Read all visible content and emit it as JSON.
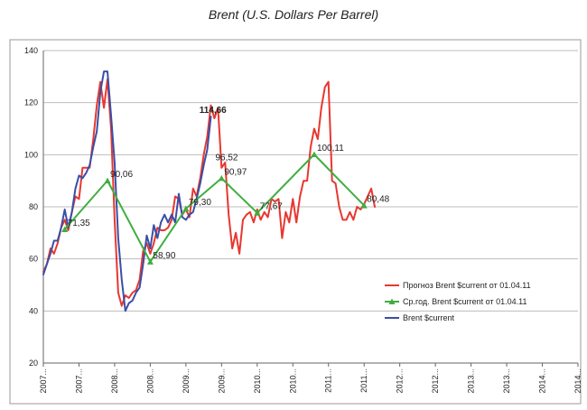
{
  "chart_data": {
    "type": "line",
    "title": "Brent (U.S. Dollars Per Barrel)",
    "xlabel": "",
    "ylabel": "",
    "ylim": [
      20,
      140
    ],
    "yticks": [
      20,
      40,
      60,
      80,
      100,
      120,
      140
    ],
    "xticks": [
      "2007",
      "2007",
      "2008",
      "2008",
      "2009",
      "2009",
      "2010",
      "2010",
      "2011",
      "2011",
      "2012",
      "2012",
      "2013",
      "2013",
      "2014",
      "2014"
    ],
    "grid": true,
    "legend_position": "bottom-right",
    "series": [
      {
        "name": "Прогноз Brent $current  от 01.04.11",
        "color": "#e8372f",
        "marker": "none",
        "points": [
          [
            0,
            55
          ],
          [
            0.1,
            58
          ],
          [
            0.2,
            64
          ],
          [
            0.3,
            62
          ],
          [
            0.4,
            66
          ],
          [
            0.5,
            72
          ],
          [
            0.6,
            75
          ],
          [
            0.7,
            71
          ],
          [
            0.8,
            78
          ],
          [
            0.9,
            84
          ],
          [
            1.0,
            83
          ],
          [
            1.1,
            95
          ],
          [
            1.2,
            95
          ],
          [
            1.3,
            95
          ],
          [
            1.4,
            106
          ],
          [
            1.5,
            119
          ],
          [
            1.6,
            128
          ],
          [
            1.7,
            118
          ],
          [
            1.8,
            129
          ],
          [
            1.9,
            110
          ],
          [
            2.0,
            75
          ],
          [
            2.1,
            47
          ],
          [
            2.2,
            42
          ],
          [
            2.3,
            46
          ],
          [
            2.4,
            45
          ],
          [
            2.5,
            47
          ],
          [
            2.6,
            48
          ],
          [
            2.7,
            52
          ],
          [
            2.8,
            63
          ],
          [
            2.9,
            66
          ],
          [
            3.0,
            62
          ],
          [
            3.1,
            66
          ],
          [
            3.2,
            72
          ],
          [
            3.3,
            71
          ],
          [
            3.4,
            71
          ],
          [
            3.5,
            72
          ],
          [
            3.6,
            75
          ],
          [
            3.7,
            84
          ],
          [
            3.8,
            83
          ],
          [
            3.9,
            77
          ],
          [
            4.0,
            79
          ],
          [
            4.1,
            76
          ],
          [
            4.2,
            87
          ],
          [
            4.3,
            84
          ],
          [
            4.4,
            91
          ],
          [
            4.5,
            100
          ],
          [
            4.6,
            107
          ],
          [
            4.7,
            119
          ],
          [
            4.8,
            114
          ],
          [
            4.9,
            118
          ],
          [
            5.0,
            95
          ],
          [
            5.1,
            97
          ],
          [
            5.2,
            77
          ],
          [
            5.3,
            64
          ],
          [
            5.4,
            70
          ],
          [
            5.5,
            62
          ],
          [
            5.6,
            75
          ],
          [
            5.7,
            77
          ],
          [
            5.8,
            78
          ],
          [
            5.9,
            74
          ],
          [
            6.0,
            79
          ],
          [
            6.1,
            75
          ],
          [
            6.2,
            78
          ],
          [
            6.3,
            76
          ],
          [
            6.4,
            83
          ],
          [
            6.5,
            82
          ],
          [
            6.6,
            83
          ],
          [
            6.7,
            68
          ],
          [
            6.8,
            78
          ],
          [
            6.9,
            74
          ],
          [
            7.0,
            83
          ],
          [
            7.1,
            74
          ],
          [
            7.2,
            84
          ],
          [
            7.3,
            90
          ],
          [
            7.4,
            90
          ],
          [
            7.5,
            103
          ],
          [
            7.6,
            110
          ],
          [
            7.7,
            106
          ],
          [
            7.8,
            118
          ],
          [
            7.9,
            126
          ],
          [
            8.0,
            128
          ],
          [
            8.1,
            90
          ],
          [
            8.2,
            89
          ],
          [
            8.3,
            80
          ],
          [
            8.4,
            75
          ],
          [
            8.5,
            75
          ],
          [
            8.6,
            78
          ],
          [
            8.7,
            75
          ],
          [
            8.8,
            80
          ],
          [
            8.9,
            79
          ],
          [
            9.0,
            81
          ],
          [
            9.1,
            84
          ],
          [
            9.2,
            87
          ],
          [
            9.3,
            80
          ]
        ]
      },
      {
        "name": "Ср.год. Brent $current   от 01.04.11",
        "color": "#3fae3f",
        "marker": "triangle",
        "points": [
          [
            0.6,
            71.35
          ],
          [
            1.8,
            90.06
          ],
          [
            3.0,
            58.9
          ],
          [
            4.0,
            79.3
          ],
          [
            5.0,
            90.97
          ],
          [
            6.0,
            77.67
          ],
          [
            7.6,
            100.11
          ],
          [
            9.0,
            80.48
          ]
        ]
      },
      {
        "name": "Brent $current",
        "color": "#3a4fa6",
        "marker": "none",
        "points": [
          [
            0,
            54
          ],
          [
            0.1,
            58
          ],
          [
            0.2,
            62
          ],
          [
            0.3,
            67
          ],
          [
            0.4,
            67
          ],
          [
            0.5,
            72
          ],
          [
            0.6,
            79
          ],
          [
            0.7,
            72
          ],
          [
            0.8,
            78
          ],
          [
            0.9,
            87
          ],
          [
            1.0,
            92
          ],
          [
            1.1,
            91
          ],
          [
            1.2,
            93
          ],
          [
            1.3,
            96
          ],
          [
            1.4,
            103
          ],
          [
            1.5,
            109
          ],
          [
            1.6,
            124
          ],
          [
            1.7,
            132
          ],
          [
            1.8,
            132
          ],
          [
            1.9,
            115
          ],
          [
            2.0,
            97
          ],
          [
            2.1,
            68
          ],
          [
            2.2,
            52
          ],
          [
            2.3,
            40
          ],
          [
            2.4,
            43
          ],
          [
            2.5,
            44
          ],
          [
            2.6,
            47
          ],
          [
            2.7,
            49
          ],
          [
            2.8,
            58
          ],
          [
            2.9,
            69
          ],
          [
            3.0,
            64
          ],
          [
            3.1,
            73
          ],
          [
            3.2,
            68
          ],
          [
            3.3,
            74
          ],
          [
            3.4,
            77
          ],
          [
            3.5,
            74
          ],
          [
            3.6,
            77
          ],
          [
            3.7,
            74
          ],
          [
            3.8,
            85
          ],
          [
            3.9,
            76
          ],
          [
            4.0,
            75
          ],
          [
            4.1,
            77
          ],
          [
            4.2,
            78
          ],
          [
            4.3,
            83
          ],
          [
            4.4,
            89
          ],
          [
            4.5,
            96
          ],
          [
            4.6,
            102
          ],
          [
            4.7,
            114.66
          ]
        ]
      }
    ],
    "data_labels": [
      {
        "text": "71,35",
        "x": 0.6,
        "y": 71.35,
        "bold": false
      },
      {
        "text": "90,06",
        "x": 1.8,
        "y": 90.06,
        "bold": false
      },
      {
        "text": "58,90",
        "x": 3.0,
        "y": 58.9,
        "bold": false
      },
      {
        "text": "79,30",
        "x": 4.0,
        "y": 79.3,
        "bold": false
      },
      {
        "text": "96,52",
        "x": 4.75,
        "y": 96.52,
        "bold": false
      },
      {
        "text": "90,97",
        "x": 5.0,
        "y": 90.97,
        "bold": false
      },
      {
        "text": "77,67",
        "x": 6.0,
        "y": 77.67,
        "bold": false
      },
      {
        "text": "100,11",
        "x": 7.6,
        "y": 100.11,
        "bold": false
      },
      {
        "text": "80,48",
        "x": 9.0,
        "y": 80.48,
        "bold": false
      },
      {
        "text": "114,66",
        "x": 4.3,
        "y": 114.66,
        "bold": true
      }
    ]
  }
}
